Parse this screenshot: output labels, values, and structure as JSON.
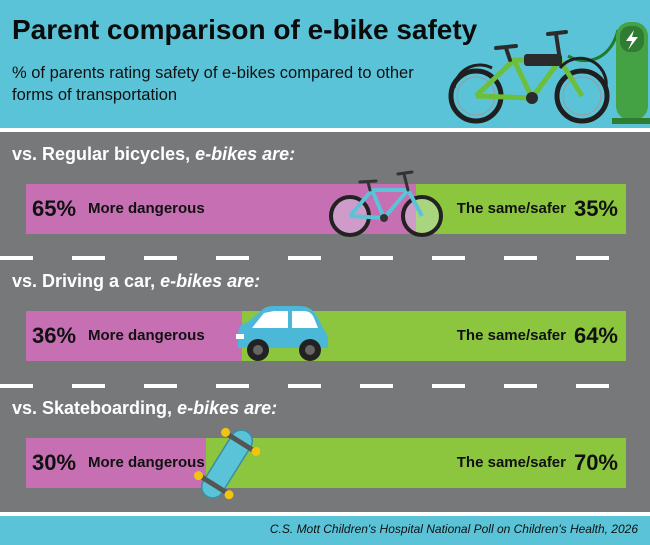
{
  "header": {
    "title": "Parent comparison of e-bike safety",
    "subtitle": "% of parents rating safety of e-bikes compared to other forms of transportation"
  },
  "chart_data": {
    "type": "bar",
    "stacked": true,
    "orientation": "horizontal",
    "categories": [
      "vs. Regular bicycles",
      "vs. Driving a car",
      "vs. Skateboarding"
    ],
    "series": [
      {
        "name": "More dangerous",
        "values": [
          65,
          36,
          30
        ],
        "color": "#c66fb3"
      },
      {
        "name": "The same/safer",
        "values": [
          35,
          64,
          70
        ],
        "color": "#8cc63f"
      }
    ],
    "xlim": [
      0,
      100
    ]
  },
  "segments": [
    {
      "prefix": "vs. Regular bicycles, ",
      "suffix": "e-bikes are:",
      "left_pct": "65%",
      "left_label": "More dangerous",
      "right_label": "The same/safer",
      "right_pct": "35%",
      "icon": "bicycle-icon"
    },
    {
      "prefix": "vs. Driving a car, ",
      "suffix": "e-bikes are:",
      "left_pct": "36%",
      "left_label": "More dangerous",
      "right_label": "The same/safer",
      "right_pct": "64%",
      "icon": "car-icon"
    },
    {
      "prefix": "vs. Skateboarding, ",
      "suffix": "e-bikes are:",
      "left_pct": "30%",
      "left_label": "More dangerous",
      "right_label": "The same/safer",
      "right_pct": "70%",
      "icon": "skateboard-icon"
    }
  ],
  "icons": {
    "header": [
      "e-bike-icon",
      "charging-station-icon"
    ],
    "segments": [
      "bicycle-icon",
      "car-icon",
      "skateboard-icon"
    ]
  },
  "colors": {
    "header_bg": "#5bc3d8",
    "road": "#77787a",
    "more_dangerous": "#c66fb3",
    "same_safer": "#8cc63f"
  },
  "footer": {
    "source": "C.S. Mott Children's Hospital National Poll on Children's Health, 2026"
  }
}
